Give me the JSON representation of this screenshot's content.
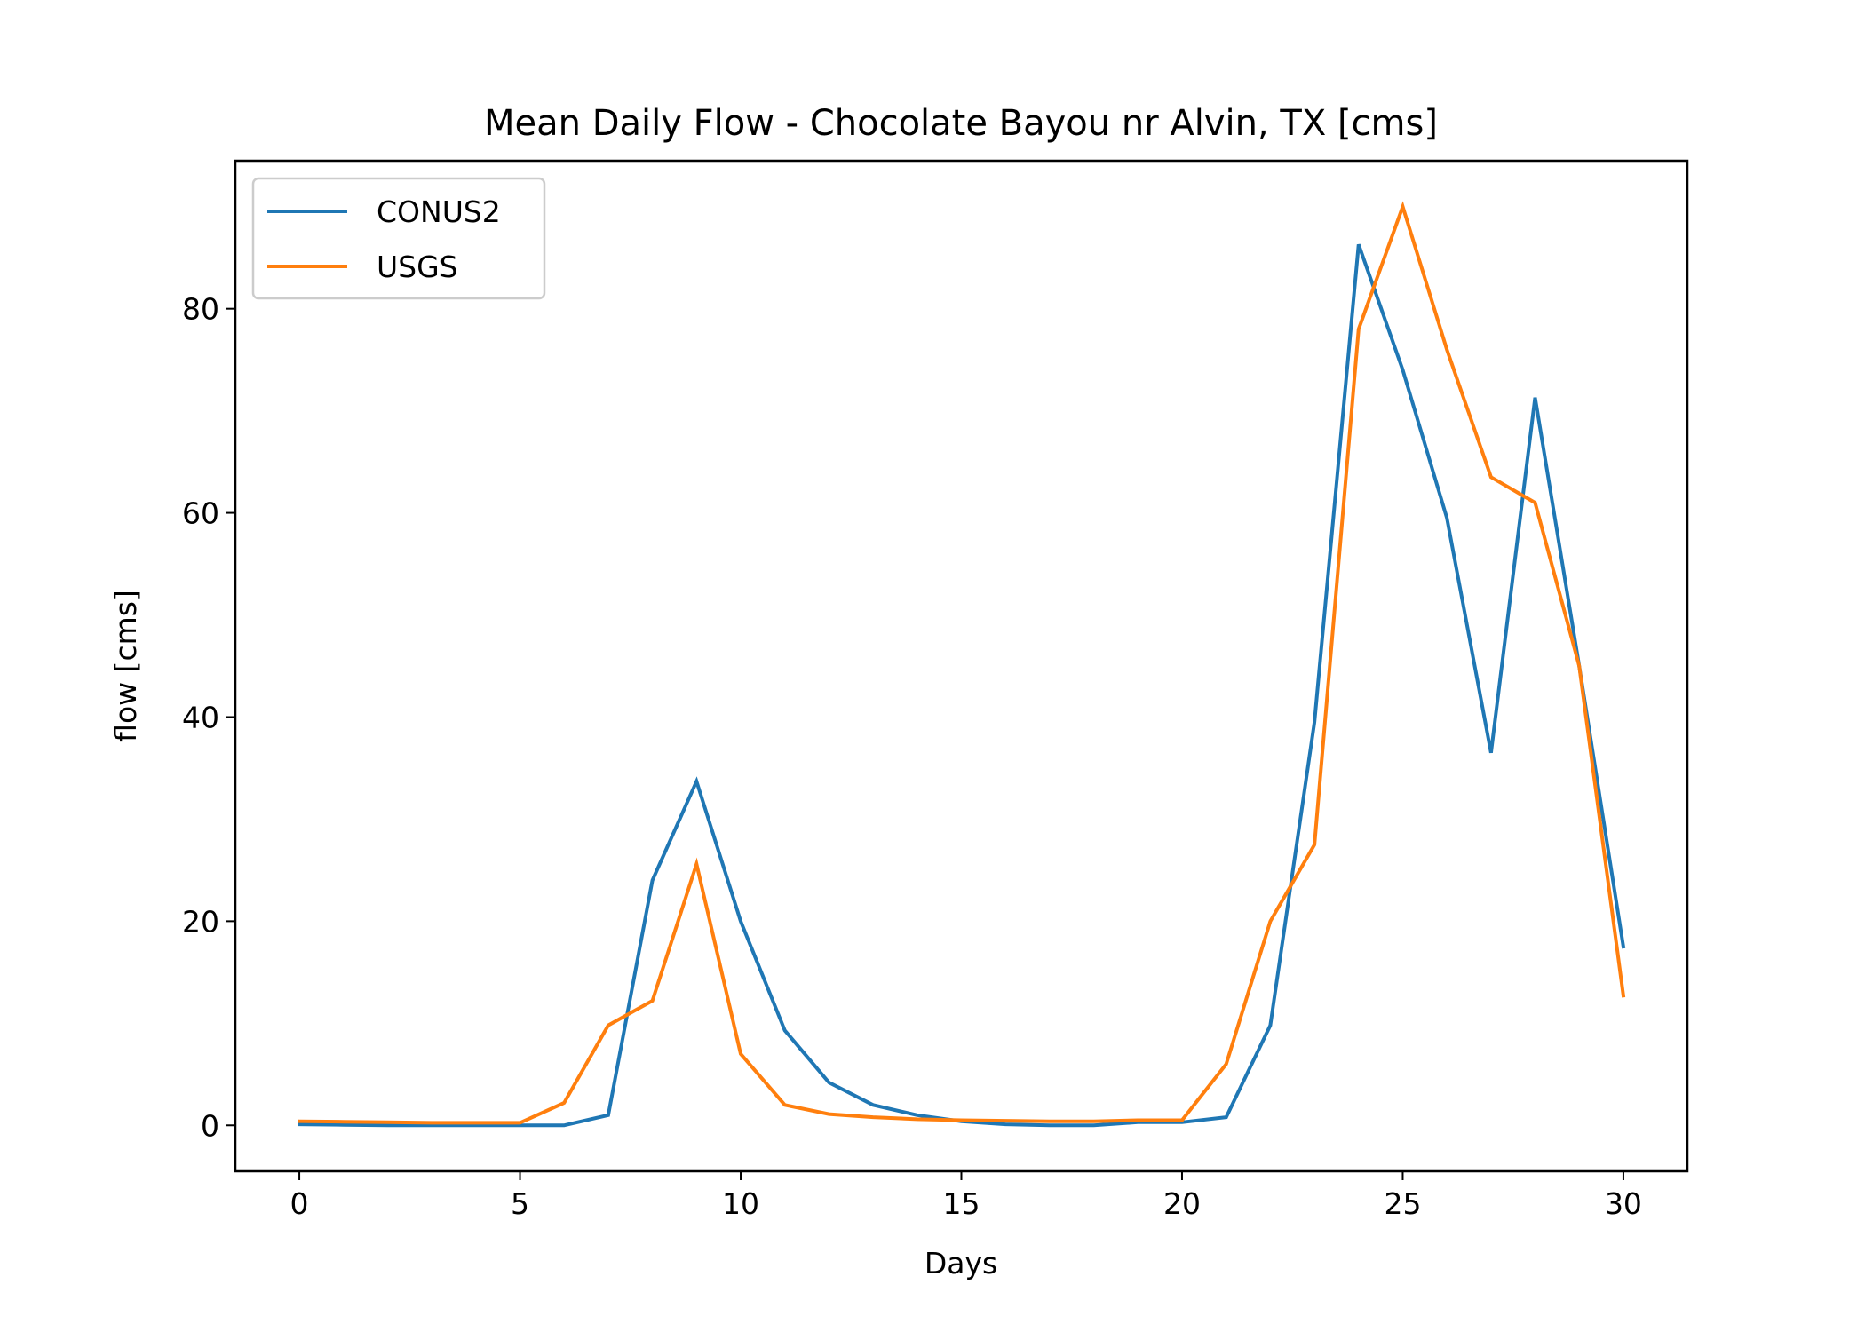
{
  "chart_data": {
    "type": "line",
    "title": "Mean Daily Flow - Chocolate Bayou nr Alvin, TX [cms]",
    "xlabel": "Days",
    "ylabel": "flow [cms]",
    "xlim": [
      -1.45,
      31.45
    ],
    "ylim": [
      -4.5,
      94.5
    ],
    "xticks": [
      0,
      5,
      10,
      15,
      20,
      25,
      30
    ],
    "yticks": [
      0,
      20,
      40,
      60,
      80
    ],
    "legend_position": "upper-left",
    "grid": false,
    "x": [
      0,
      1,
      2,
      3,
      4,
      5,
      6,
      7,
      8,
      9,
      10,
      11,
      12,
      13,
      14,
      15,
      16,
      17,
      18,
      19,
      20,
      21,
      22,
      23,
      24,
      25,
      26,
      27,
      28,
      29,
      30
    ],
    "series": [
      {
        "name": "CONUS2",
        "color": "#1f77b4",
        "values": [
          0.1,
          0.05,
          0.0,
          0.0,
          0.0,
          0.0,
          0.0,
          1.0,
          24.0,
          33.7,
          20.0,
          9.3,
          4.2,
          2.0,
          1.0,
          0.4,
          0.1,
          0.0,
          0.0,
          0.3,
          0.3,
          0.8,
          9.8,
          39.5,
          86.3,
          74.0,
          59.5,
          36.5,
          71.3,
          45.0,
          17.5
        ]
      },
      {
        "name": "USGS",
        "color": "#ff7f0e",
        "values": [
          0.4,
          0.35,
          0.3,
          0.25,
          0.25,
          0.25,
          2.2,
          9.8,
          12.2,
          25.6,
          7.0,
          2.0,
          1.1,
          0.8,
          0.6,
          0.5,
          0.45,
          0.4,
          0.4,
          0.5,
          0.5,
          6.0,
          20.0,
          27.5,
          78.0,
          90.0,
          76.0,
          63.5,
          61.0,
          45.0,
          12.7
        ]
      }
    ]
  }
}
